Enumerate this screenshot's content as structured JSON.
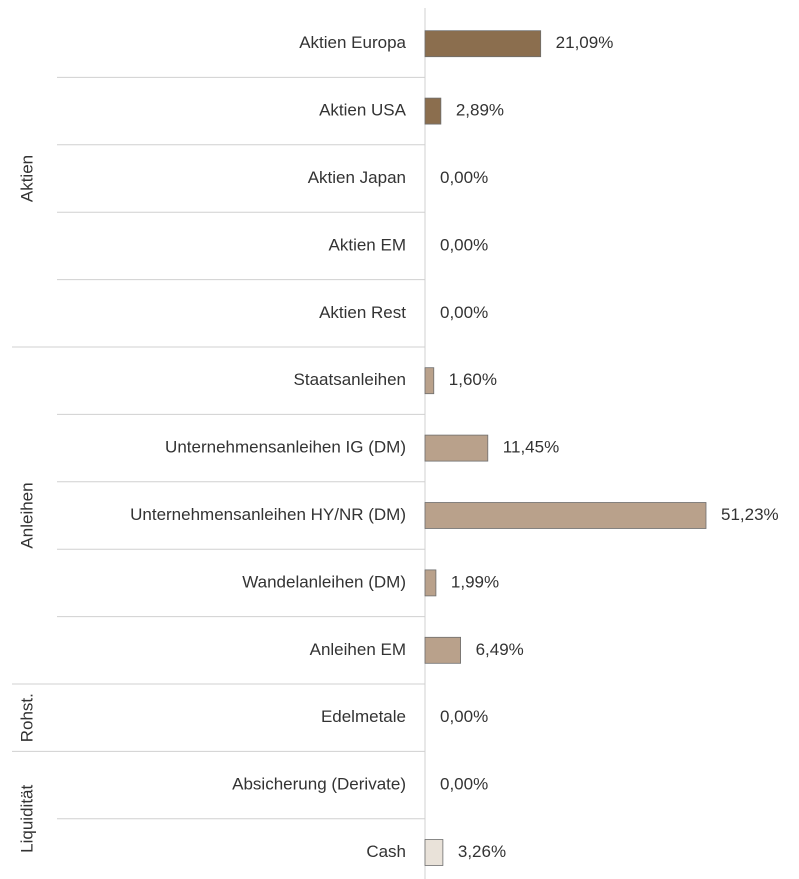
{
  "chart_data": {
    "type": "bar",
    "orientation": "horizontal",
    "groups": [
      {
        "name": "Aktien",
        "color": "#8b6e4e",
        "categories": [
          "Aktien Europa",
          "Aktien USA",
          "Aktien Japan",
          "Aktien EM",
          "Aktien Rest"
        ],
        "values": [
          21.09,
          2.89,
          0,
          0,
          0
        ],
        "value_labels": [
          "21,09%",
          "2,89%",
          "0,00%",
          "0,00%",
          "0,00%"
        ]
      },
      {
        "name": "Anleihen",
        "color": "#b9a18b",
        "categories": [
          "Staatsanleihen",
          "Unternehmensanleihen IG (DM)",
          "Unternehmensanleihen HY/NR (DM)",
          "Wandelanleihen (DM)",
          "Anleihen EM"
        ],
        "values": [
          1.6,
          11.45,
          51.23,
          1.99,
          6.49
        ],
        "value_labels": [
          "1,60%",
          "11,45%",
          "51,23%",
          "1,99%",
          "6,49%"
        ]
      },
      {
        "name": "Rohst.",
        "color": "#a89074",
        "categories": [
          "Edelmetale"
        ],
        "values": [
          0
        ],
        "value_labels": [
          "0,00%"
        ]
      },
      {
        "name": "Liquidität",
        "color": "#e9e2d9",
        "categories": [
          "Absicherung (Derivate)",
          "Cash"
        ],
        "values": [
          0,
          3.26
        ],
        "value_labels": [
          "0,00%",
          "3,26%"
        ]
      }
    ]
  }
}
